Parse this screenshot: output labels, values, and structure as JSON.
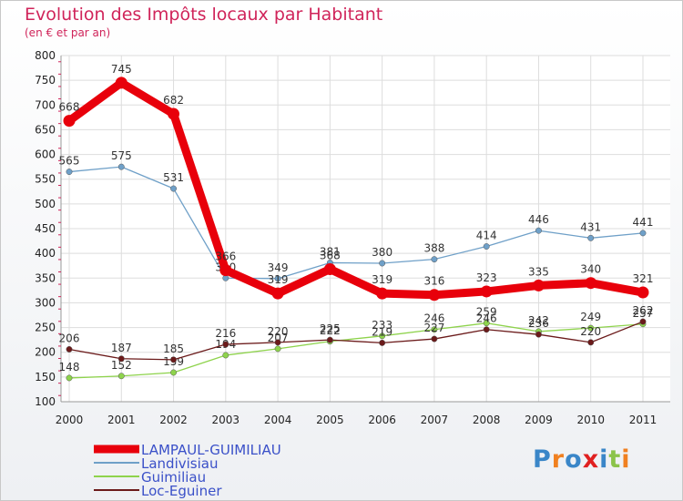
{
  "chart_data": {
    "type": "line",
    "title": "Evolution des Impôts locaux par Habitant",
    "subtitle": "(en € et par an)",
    "categories": [
      "2000",
      "2001",
      "2002",
      "2003",
      "2004",
      "2005",
      "2006",
      "2007",
      "2008",
      "2009",
      "2010",
      "2011"
    ],
    "ylim": [
      100,
      800
    ],
    "yticks": [
      100,
      150,
      200,
      250,
      300,
      350,
      400,
      450,
      500,
      550,
      600,
      650,
      700,
      750,
      800
    ],
    "grid": true,
    "legend_position": "bottom-left",
    "series": [
      {
        "name": "LAMPAUL-GUIMILIAU",
        "color": "#e8000b",
        "highlight": true,
        "values": [
          668,
          745,
          682,
          366,
          319,
          368,
          319,
          316,
          323,
          335,
          340,
          321
        ]
      },
      {
        "name": "Landivisiau",
        "color": "#6fa0c8",
        "values": [
          565,
          575,
          531,
          350,
          349,
          381,
          380,
          388,
          414,
          446,
          431,
          441
        ]
      },
      {
        "name": "Guimiliau",
        "color": "#8ed34c",
        "values": [
          148,
          152,
          159,
          194,
          207,
          222,
          233,
          246,
          259,
          242,
          249,
          257
        ]
      },
      {
        "name": "Loc-Eguiner",
        "color": "#6b1a1a",
        "values": [
          206,
          187,
          185,
          216,
          220,
          225,
          219,
          227,
          246,
          236,
          220,
          262
        ]
      }
    ]
  },
  "logo": {
    "letters": [
      "P",
      "r",
      "o",
      "x",
      "i",
      "t",
      "i"
    ],
    "colors": [
      "#3a86c8",
      "#f08020",
      "#3a86c8",
      "#e02020",
      "#3a86c8",
      "#8bc34a",
      "#f08020"
    ]
  }
}
